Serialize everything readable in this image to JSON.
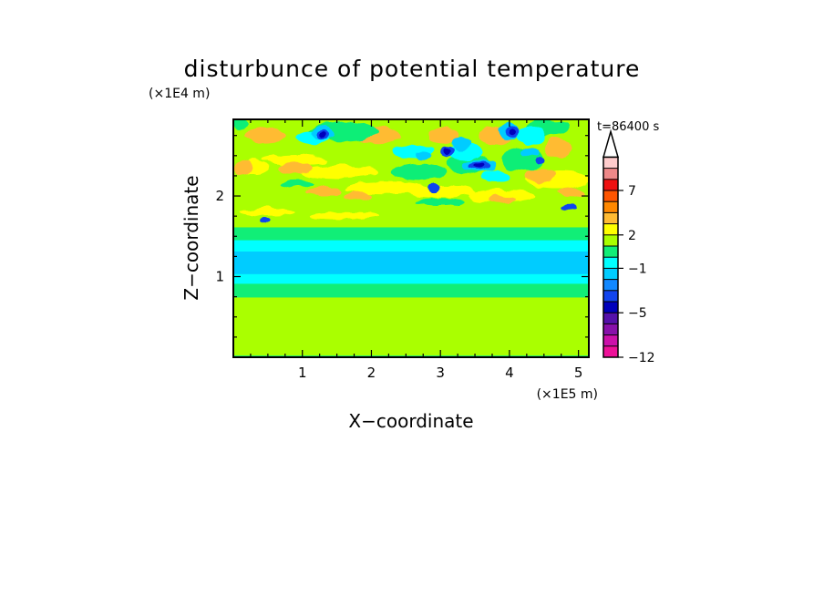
{
  "chart_data": {
    "type": "heatmap",
    "title": "disturbunce of potential temperature",
    "xlabel": "X−coordinate",
    "ylabel": "Z−coordinate",
    "x_unit": "(×1E5 m)",
    "y_unit": "(×1E4 m)",
    "time_label": "t=86400 s",
    "xlim": [
      0,
      5.15
    ],
    "ylim": [
      0,
      2.95
    ],
    "x_ticks": [
      1,
      2,
      3,
      4,
      5
    ],
    "x_tick_labels": [
      "1",
      "2",
      "3",
      "4",
      "5"
    ],
    "y_ticks": [
      1,
      2
    ],
    "y_tick_labels": [
      "1",
      "2"
    ],
    "colorbar": {
      "levels": [
        -12,
        -10,
        -8,
        -6,
        -5,
        -4,
        -3,
        -2,
        -1,
        0,
        1,
        2,
        3,
        4,
        5,
        7,
        9,
        11
      ],
      "colors": [
        "#ee1199",
        "#cc11aa",
        "#8811aa",
        "#5511aa",
        "#0000bb",
        "#1144ee",
        "#1188ff",
        "#00ccff",
        "#00ffff",
        "#11ee77",
        "#aaff00",
        "#ffff00",
        "#ffbb33",
        "#ff8800",
        "#ff5500",
        "#ee1111",
        "#ee8888",
        "#ffcccc"
      ],
      "tick_values": [
        -12,
        -5,
        -1,
        2,
        7
      ],
      "tick_labels": [
        "−12",
        "−5",
        "−1",
        "2",
        "7"
      ],
      "extend_top": true,
      "extend_color": "#ffffff"
    },
    "bands": [
      {
        "z0": 0.0,
        "z1": 0.03,
        "value": 0.5
      },
      {
        "z0": 0.03,
        "z1": 0.75,
        "value": 1.5
      },
      {
        "z0": 0.75,
        "z1": 0.92,
        "value": 0.5
      },
      {
        "z0": 0.92,
        "z1": 1.04,
        "value": -0.5
      },
      {
        "z0": 1.04,
        "z1": 1.32,
        "value": -1.5
      },
      {
        "z0": 1.32,
        "z1": 1.46,
        "value": -0.5
      },
      {
        "z0": 1.46,
        "z1": 1.62,
        "value": 0.5
      },
      {
        "z0": 1.62,
        "z1": 1.95,
        "value": 1.5
      },
      {
        "z0": 1.95,
        "z1": 2.95,
        "value": 1.5
      }
    ],
    "features": [
      {
        "x": 0.28,
        "z": 2.35,
        "rx": 0.25,
        "rz": 0.09,
        "value": 2.5
      },
      {
        "x": 0.9,
        "z": 2.45,
        "rx": 0.45,
        "rz": 0.07,
        "value": 2.5
      },
      {
        "x": 1.55,
        "z": 2.3,
        "rx": 0.55,
        "rz": 0.08,
        "value": 2.5
      },
      {
        "x": 2.2,
        "z": 2.1,
        "rx": 0.6,
        "rz": 0.08,
        "value": 2.5
      },
      {
        "x": 3.0,
        "z": 2.05,
        "rx": 0.5,
        "rz": 0.07,
        "value": 2.5
      },
      {
        "x": 3.9,
        "z": 2.0,
        "rx": 0.5,
        "rz": 0.08,
        "value": 2.5
      },
      {
        "x": 4.7,
        "z": 2.2,
        "rx": 0.45,
        "rz": 0.1,
        "value": 2.5
      },
      {
        "x": 0.5,
        "z": 1.8,
        "rx": 0.4,
        "rz": 0.05,
        "value": 2.5
      },
      {
        "x": 1.6,
        "z": 1.75,
        "rx": 0.5,
        "rz": 0.05,
        "value": 2.5
      },
      {
        "x": 0.15,
        "z": 2.35,
        "rx": 0.12,
        "rz": 0.1,
        "value": 3.5
      },
      {
        "x": 0.9,
        "z": 2.35,
        "rx": 0.25,
        "rz": 0.06,
        "value": 3.5
      },
      {
        "x": 1.3,
        "z": 2.05,
        "rx": 0.25,
        "rz": 0.05,
        "value": 3.5
      },
      {
        "x": 1.8,
        "z": 2.0,
        "rx": 0.2,
        "rz": 0.05,
        "value": 3.5
      },
      {
        "x": 3.9,
        "z": 1.95,
        "rx": 0.2,
        "rz": 0.05,
        "value": 3.5
      },
      {
        "x": 4.45,
        "z": 2.25,
        "rx": 0.2,
        "rz": 0.08,
        "value": 3.5
      },
      {
        "x": 4.9,
        "z": 2.05,
        "rx": 0.2,
        "rz": 0.06,
        "value": 3.5
      },
      {
        "x": 2.1,
        "z": 2.75,
        "rx": 0.3,
        "rz": 0.12,
        "value": 3.5
      },
      {
        "x": 3.05,
        "z": 2.75,
        "rx": 0.2,
        "rz": 0.1,
        "value": 3.5
      },
      {
        "x": 3.8,
        "z": 2.75,
        "rx": 0.25,
        "rz": 0.1,
        "value": 3.5
      },
      {
        "x": 4.7,
        "z": 2.6,
        "rx": 0.2,
        "rz": 0.12,
        "value": 3.5
      },
      {
        "x": 0.45,
        "z": 2.75,
        "rx": 0.3,
        "rz": 0.09,
        "value": 3.5
      },
      {
        "x": 0.9,
        "z": 2.15,
        "rx": 0.25,
        "rz": 0.05,
        "value": 0.5
      },
      {
        "x": 2.7,
        "z": 2.3,
        "rx": 0.4,
        "rz": 0.1,
        "value": 0.5
      },
      {
        "x": 3.4,
        "z": 2.4,
        "rx": 0.3,
        "rz": 0.12,
        "value": 0.5
      },
      {
        "x": 1.6,
        "z": 2.8,
        "rx": 0.5,
        "rz": 0.12,
        "value": 0.5
      },
      {
        "x": 4.2,
        "z": 2.45,
        "rx": 0.3,
        "rz": 0.15,
        "value": 0.5
      },
      {
        "x": 4.55,
        "z": 2.85,
        "rx": 0.3,
        "rz": 0.1,
        "value": 0.5
      },
      {
        "x": 0.1,
        "z": 2.9,
        "rx": 0.1,
        "rz": 0.06,
        "value": 0.5
      },
      {
        "x": 3.0,
        "z": 1.92,
        "rx": 0.35,
        "rz": 0.05,
        "value": 0.5
      },
      {
        "x": 1.15,
        "z": 2.72,
        "rx": 0.25,
        "rz": 0.09,
        "value": -0.5
      },
      {
        "x": 2.6,
        "z": 2.55,
        "rx": 0.3,
        "rz": 0.08,
        "value": -0.5
      },
      {
        "x": 3.35,
        "z": 2.55,
        "rx": 0.25,
        "rz": 0.1,
        "value": -0.5
      },
      {
        "x": 4.3,
        "z": 2.75,
        "rx": 0.2,
        "rz": 0.1,
        "value": -0.5
      },
      {
        "x": 3.8,
        "z": 2.25,
        "rx": 0.2,
        "rz": 0.08,
        "value": -0.5
      },
      {
        "x": 1.3,
        "z": 2.78,
        "rx": 0.17,
        "rz": 0.09,
        "value": -1.5
      },
      {
        "x": 2.75,
        "z": 2.5,
        "rx": 0.12,
        "rz": 0.05,
        "value": -1.5
      },
      {
        "x": 3.3,
        "z": 2.65,
        "rx": 0.15,
        "rz": 0.08,
        "value": -1.5
      },
      {
        "x": 4.3,
        "z": 2.55,
        "rx": 0.12,
        "rz": 0.06,
        "value": -1.5
      },
      {
        "x": 4.0,
        "z": 2.8,
        "rx": 0.15,
        "rz": 0.1,
        "value": -1.5
      },
      {
        "x": 3.55,
        "z": 2.38,
        "rx": 0.25,
        "rz": 0.07,
        "value": -1.5
      },
      {
        "x": 1.3,
        "z": 2.75,
        "rx": 0.1,
        "rz": 0.06,
        "value": -3.5
      },
      {
        "x": 3.1,
        "z": 2.55,
        "rx": 0.1,
        "rz": 0.06,
        "value": -3.5
      },
      {
        "x": 3.55,
        "z": 2.38,
        "rx": 0.15,
        "rz": 0.05,
        "value": -3.5
      },
      {
        "x": 4.05,
        "z": 2.8,
        "rx": 0.1,
        "rz": 0.07,
        "value": -3.5
      },
      {
        "x": 4.85,
        "z": 1.85,
        "rx": 0.12,
        "rz": 0.04,
        "value": -3.5
      },
      {
        "x": 0.45,
        "z": 1.7,
        "rx": 0.08,
        "rz": 0.03,
        "value": -3.5
      },
      {
        "x": 2.9,
        "z": 2.1,
        "rx": 0.1,
        "rz": 0.05,
        "value": -3.5
      },
      {
        "x": 4.45,
        "z": 2.45,
        "rx": 0.08,
        "rz": 0.05,
        "value": -3.5
      },
      {
        "x": 1.3,
        "z": 2.75,
        "rx": 0.05,
        "rz": 0.035,
        "value": -4.5
      },
      {
        "x": 3.1,
        "z": 2.55,
        "rx": 0.05,
        "rz": 0.035,
        "value": -4.5
      },
      {
        "x": 3.55,
        "z": 2.38,
        "rx": 0.08,
        "rz": 0.03,
        "value": -4.5
      },
      {
        "x": 4.05,
        "z": 2.8,
        "rx": 0.05,
        "rz": 0.04,
        "value": -4.5
      }
    ]
  }
}
